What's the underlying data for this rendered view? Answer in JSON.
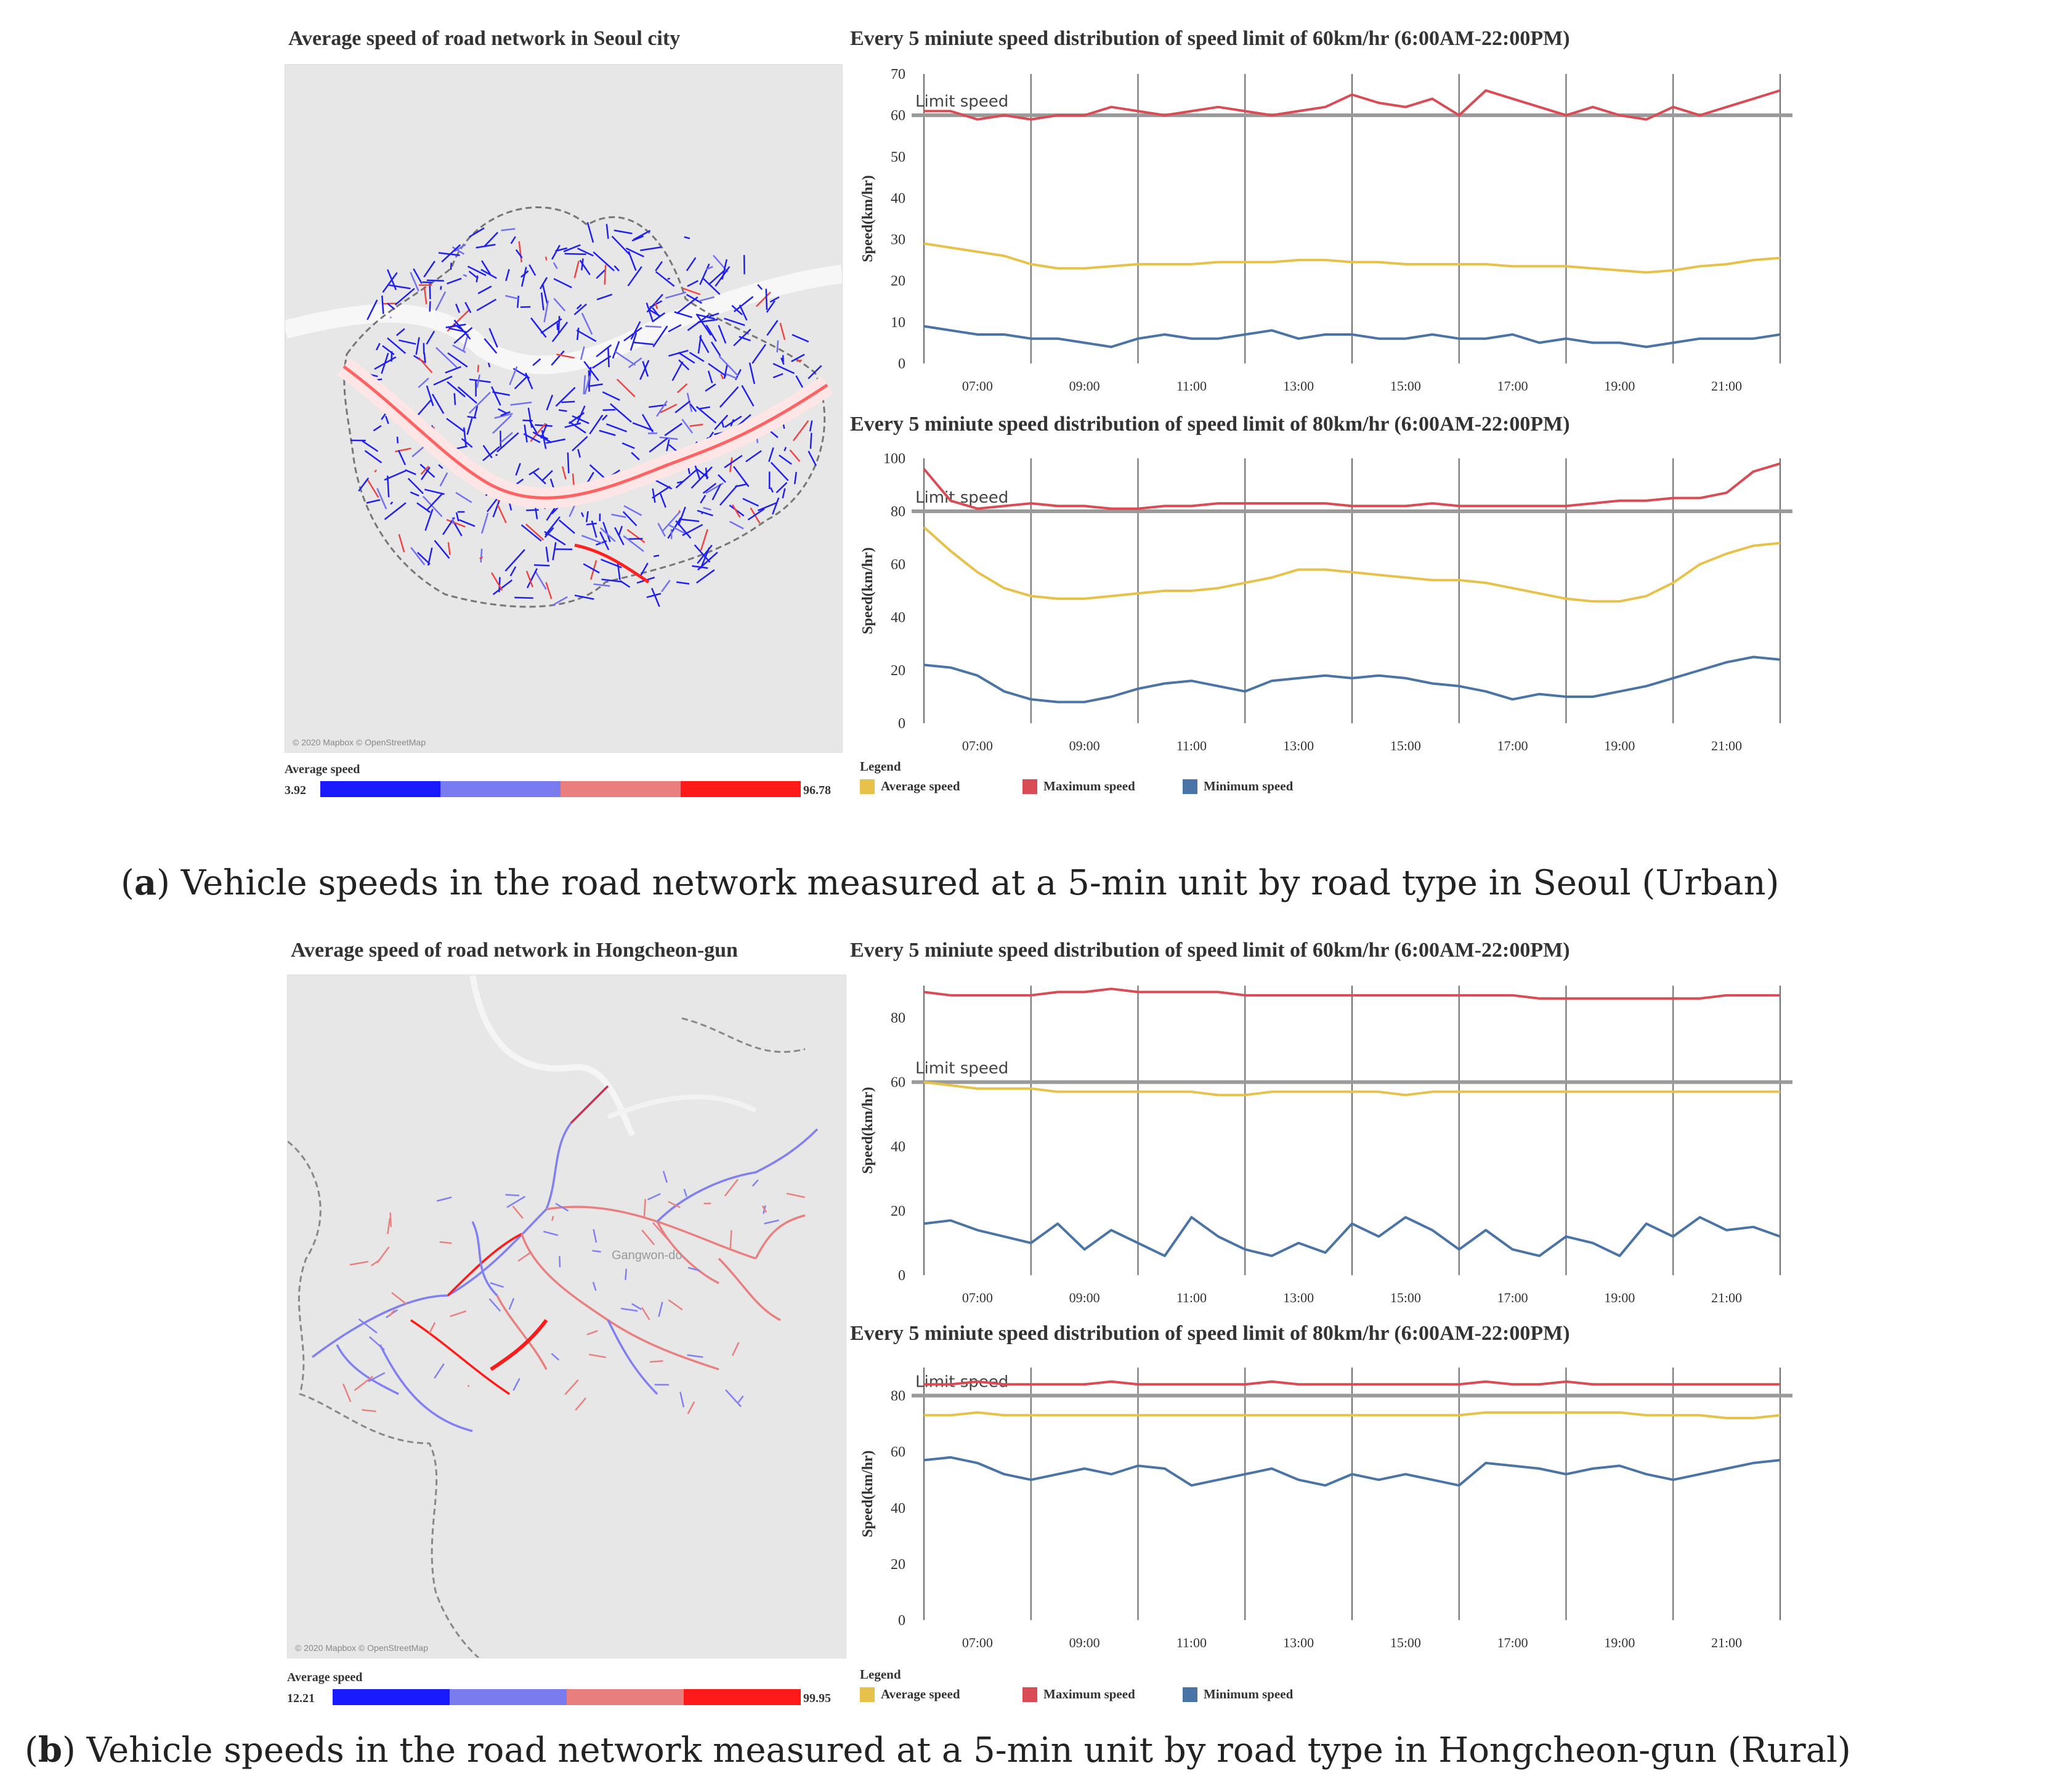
{
  "colors": {
    "average": "#e8c14a",
    "maximum": "#d94b55",
    "minimum": "#4a73a6",
    "limit": "#9a9a9a",
    "scale": [
      "#1a1aff",
      "#7b7bf0",
      "#e87e7e",
      "#ff1a1a"
    ]
  },
  "panels": [
    {
      "tag": "a",
      "caption_rest": ") Vehicle speeds in the road network measured at a 5-min unit by road type in Seoul (Urban)",
      "map": {
        "title": "Average speed of road network in Seoul city",
        "attribution": "© 2020 Mapbox © OpenStreetMap",
        "region_label": "",
        "scale_title": "Average speed",
        "scale_min": "3.92",
        "scale_max": "96.78"
      },
      "legend": {
        "title": "Legend",
        "items": [
          "Average speed",
          "Maximum speed",
          "Minimum speed"
        ]
      }
    },
    {
      "tag": "b",
      "caption_rest": ") Vehicle speeds in the road network measured at a 5-min unit by road type in Hongcheon-gun (Rural)",
      "map": {
        "title": "Average speed of road network in Hongcheon-gun",
        "attribution": "© 2020 Mapbox © OpenStreetMap",
        "region_label": "Gangwon-do",
        "scale_title": "Average speed",
        "scale_min": "12.21",
        "scale_max": "99.95"
      },
      "legend": {
        "title": "Legend",
        "items": [
          "Average speed",
          "Maximum speed",
          "Minimum speed"
        ]
      }
    }
  ],
  "chart_data": [
    {
      "type": "line",
      "title": "Every 5 miniute speed distribution of speed limit of 60km/hr (6:00AM-22:00PM)",
      "xlabel": "",
      "ylabel": "Speed(km/hr)",
      "x_range": [
        6.0,
        22.0
      ],
      "x_ticks": [
        "07:00",
        "09:00",
        "11:00",
        "13:00",
        "15:00",
        "17:00",
        "19:00",
        "21:00"
      ],
      "ylim": [
        0,
        70
      ],
      "y_ticks": [
        0,
        10,
        20,
        30,
        40,
        50,
        60,
        70
      ],
      "limit": {
        "label": "Limit speed",
        "value": 60
      },
      "grid": "vertical lines every 2 hours",
      "x": [
        6,
        6.5,
        7,
        7.5,
        8,
        8.5,
        9,
        9.5,
        10,
        10.5,
        11,
        11.5,
        12,
        12.5,
        13,
        13.5,
        14,
        14.5,
        15,
        15.5,
        16,
        16.5,
        17,
        17.5,
        18,
        18.5,
        19,
        19.5,
        20,
        20.5,
        21,
        21.5,
        22
      ],
      "series": [
        {
          "name": "Maximum speed",
          "values": [
            61,
            61,
            59,
            60,
            59,
            60,
            60,
            62,
            61,
            60,
            61,
            62,
            61,
            60,
            61,
            62,
            65,
            63,
            62,
            64,
            60,
            66,
            64,
            62,
            60,
            62,
            60,
            59,
            62,
            60,
            62,
            64,
            66
          ]
        },
        {
          "name": "Average speed",
          "values": [
            29,
            28,
            27,
            26,
            24,
            23,
            23,
            23.5,
            24,
            24,
            24,
            24.5,
            24.5,
            24.5,
            25,
            25,
            24.5,
            24.5,
            24,
            24,
            24,
            24,
            23.5,
            23.5,
            23.5,
            23,
            22.5,
            22,
            22.5,
            23.5,
            24,
            25,
            25.5
          ]
        },
        {
          "name": "Minimum speed",
          "values": [
            9,
            8,
            7,
            7,
            6,
            6,
            5,
            4,
            6,
            7,
            6,
            6,
            7,
            8,
            6,
            7,
            7,
            6,
            6,
            7,
            6,
            6,
            7,
            5,
            6,
            5,
            5,
            4,
            5,
            6,
            6,
            6,
            7
          ]
        }
      ]
    },
    {
      "type": "line",
      "title": "Every 5 miniute speed distribution of speed limit of 80km/hr (6:00AM-22:00PM)",
      "xlabel": "",
      "ylabel": "Speed(km/hr)",
      "x_range": [
        6.0,
        22.0
      ],
      "x_ticks": [
        "07:00",
        "09:00",
        "11:00",
        "13:00",
        "15:00",
        "17:00",
        "19:00",
        "21:00"
      ],
      "ylim": [
        0,
        100
      ],
      "y_ticks": [
        0,
        20,
        40,
        60,
        80,
        100
      ],
      "limit": {
        "label": "Limit speed",
        "value": 80
      },
      "grid": "vertical lines every 2 hours",
      "x": [
        6,
        6.5,
        7,
        7.5,
        8,
        8.5,
        9,
        9.5,
        10,
        10.5,
        11,
        11.5,
        12,
        12.5,
        13,
        13.5,
        14,
        14.5,
        15,
        15.5,
        16,
        16.5,
        17,
        17.5,
        18,
        18.5,
        19,
        19.5,
        20,
        20.5,
        21,
        21.5,
        22
      ],
      "series": [
        {
          "name": "Maximum speed",
          "values": [
            96,
            84,
            81,
            82,
            83,
            82,
            82,
            81,
            81,
            82,
            82,
            83,
            83,
            83,
            83,
            83,
            82,
            82,
            82,
            83,
            82,
            82,
            82,
            82,
            82,
            83,
            84,
            84,
            85,
            85,
            87,
            95,
            98
          ]
        },
        {
          "name": "Average speed",
          "values": [
            74,
            65,
            57,
            51,
            48,
            47,
            47,
            48,
            49,
            50,
            50,
            51,
            53,
            55,
            58,
            58,
            57,
            56,
            55,
            54,
            54,
            53,
            51,
            49,
            47,
            46,
            46,
            48,
            53,
            60,
            64,
            67,
            68
          ]
        },
        {
          "name": "Minimum speed",
          "values": [
            22,
            21,
            18,
            12,
            9,
            8,
            8,
            10,
            13,
            15,
            16,
            14,
            12,
            16,
            17,
            18,
            17,
            18,
            17,
            15,
            14,
            12,
            9,
            11,
            10,
            10,
            12,
            14,
            17,
            20,
            23,
            25,
            24
          ]
        }
      ]
    },
    {
      "type": "line",
      "title": "Every 5 miniute speed distribution of speed limit of 60km/hr (6:00AM-22:00PM)",
      "xlabel": "",
      "ylabel": "Speed(km/hr)",
      "x_range": [
        6.0,
        22.0
      ],
      "x_ticks": [
        "07:00",
        "09:00",
        "11:00",
        "13:00",
        "15:00",
        "17:00",
        "19:00",
        "21:00"
      ],
      "ylim": [
        0,
        90
      ],
      "y_ticks": [
        0,
        20,
        40,
        60,
        80
      ],
      "limit": {
        "label": "Limit speed",
        "value": 60
      },
      "grid": "vertical lines every 2 hours",
      "x": [
        6,
        6.5,
        7,
        7.5,
        8,
        8.5,
        9,
        9.5,
        10,
        10.5,
        11,
        11.5,
        12,
        12.5,
        13,
        13.5,
        14,
        14.5,
        15,
        15.5,
        16,
        16.5,
        17,
        17.5,
        18,
        18.5,
        19,
        19.5,
        20,
        20.5,
        21,
        21.5,
        22
      ],
      "series": [
        {
          "name": "Maximum speed",
          "values": [
            88,
            87,
            87,
            87,
            87,
            88,
            88,
            89,
            88,
            88,
            88,
            88,
            87,
            87,
            87,
            87,
            87,
            87,
            87,
            87,
            87,
            87,
            87,
            86,
            86,
            86,
            86,
            86,
            86,
            86,
            87,
            87,
            87
          ]
        },
        {
          "name": "Average speed",
          "values": [
            60,
            59,
            58,
            58,
            58,
            57,
            57,
            57,
            57,
            57,
            57,
            56,
            56,
            57,
            57,
            57,
            57,
            57,
            56,
            57,
            57,
            57,
            57,
            57,
            57,
            57,
            57,
            57,
            57,
            57,
            57,
            57,
            57
          ]
        },
        {
          "name": "Minimum speed",
          "values": [
            16,
            17,
            14,
            12,
            10,
            16,
            8,
            14,
            10,
            6,
            18,
            12,
            8,
            6,
            10,
            7,
            16,
            12,
            18,
            14,
            8,
            14,
            8,
            6,
            12,
            10,
            6,
            16,
            12,
            18,
            14,
            15,
            12
          ]
        }
      ]
    },
    {
      "type": "line",
      "title": "Every 5 miniute speed distribution of speed limit of 80km/hr (6:00AM-22:00PM)",
      "xlabel": "",
      "ylabel": "Speed(km/hr)",
      "x_range": [
        6.0,
        22.0
      ],
      "x_ticks": [
        "07:00",
        "09:00",
        "11:00",
        "13:00",
        "15:00",
        "17:00",
        "19:00",
        "21:00"
      ],
      "ylim": [
        0,
        90
      ],
      "y_ticks": [
        0,
        20,
        40,
        60,
        80
      ],
      "limit": {
        "label": "Limit speed",
        "value": 80
      },
      "grid": "vertical lines every 2 hours",
      "x": [
        6,
        6.5,
        7,
        7.5,
        8,
        8.5,
        9,
        9.5,
        10,
        10.5,
        11,
        11.5,
        12,
        12.5,
        13,
        13.5,
        14,
        14.5,
        15,
        15.5,
        16,
        16.5,
        17,
        17.5,
        18,
        18.5,
        19,
        19.5,
        20,
        20.5,
        21,
        21.5,
        22
      ],
      "series": [
        {
          "name": "Maximum speed",
          "values": [
            84,
            84,
            85,
            84,
            84,
            84,
            84,
            85,
            84,
            84,
            84,
            84,
            84,
            85,
            84,
            84,
            84,
            84,
            84,
            84,
            84,
            85,
            84,
            84,
            85,
            84,
            84,
            84,
            84,
            84,
            84,
            84,
            84
          ]
        },
        {
          "name": "Average speed",
          "values": [
            73,
            73,
            74,
            73,
            73,
            73,
            73,
            73,
            73,
            73,
            73,
            73,
            73,
            73,
            73,
            73,
            73,
            73,
            73,
            73,
            73,
            74,
            74,
            74,
            74,
            74,
            74,
            73,
            73,
            73,
            72,
            72,
            73
          ]
        },
        {
          "name": "Minimum speed",
          "values": [
            57,
            58,
            56,
            52,
            50,
            52,
            54,
            52,
            55,
            54,
            48,
            50,
            52,
            54,
            50,
            48,
            52,
            50,
            52,
            50,
            48,
            56,
            55,
            54,
            52,
            54,
            55,
            52,
            50,
            52,
            54,
            56,
            57
          ]
        }
      ]
    }
  ]
}
